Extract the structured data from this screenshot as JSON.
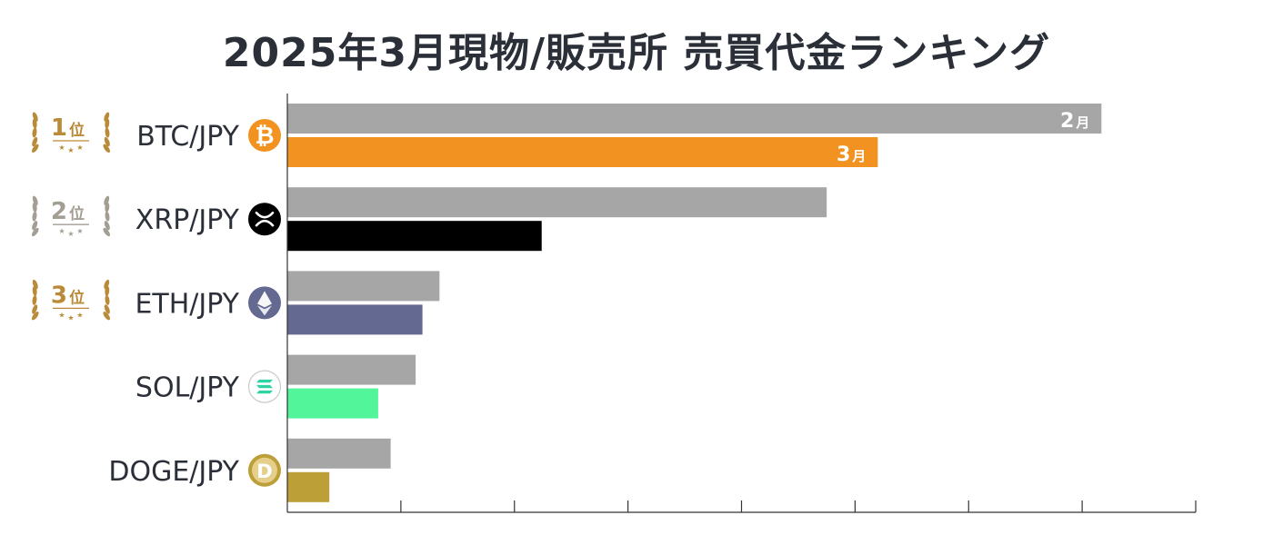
{
  "title": "2025年3月現物/販売所 売買代金ランキング",
  "colors": {
    "prev_bar": "#a6a6a6",
    "gold_badge": "#b98a38",
    "silver_badge": "#a39d94",
    "axis": "#333333",
    "tag_text": "#ffffff"
  },
  "chart_data": {
    "type": "bar",
    "orientation": "horizontal",
    "title": "2025年3月現物/販売所 売買代金ランキング",
    "xlabel": "",
    "ylabel": "",
    "categories": [
      "BTC/JPY",
      "XRP/JPY",
      "ETH/JPY",
      "SOL/JPY",
      "DOGE/JPY"
    ],
    "xlim": [
      0,
      8
    ],
    "x_tick_labels_shown": false,
    "grid": false,
    "series": [
      {
        "name": "2月",
        "role": "prev",
        "values": [
          7.17,
          4.75,
          1.34,
          1.13,
          0.91
        ]
      },
      {
        "name": "3月",
        "role": "curr",
        "values": [
          5.2,
          2.24,
          1.19,
          0.8,
          0.37
        ]
      }
    ],
    "bar_tags": {
      "first_row_only": true,
      "prev": "2",
      "curr": "3",
      "suffix": "月"
    },
    "current_colors": [
      "#f29220",
      "#000000",
      "#646991",
      "#52f59a",
      "#bc9f37"
    ],
    "icons": [
      "bitcoin-icon",
      "xrp-icon",
      "ethereum-icon",
      "solana-icon",
      "dogecoin-icon"
    ],
    "ranks": [
      {
        "num": "1",
        "suffix": "位",
        "style": "gold"
      },
      {
        "num": "2",
        "suffix": "位",
        "style": "silver"
      },
      {
        "num": "3",
        "suffix": "位",
        "style": "gold"
      },
      null,
      null
    ]
  }
}
